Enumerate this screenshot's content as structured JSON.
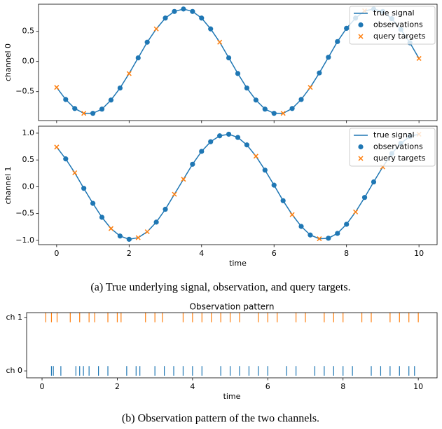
{
  "chart_data": [
    {
      "type": "line",
      "ylabel": "channel 0",
      "xlim": [
        -0.5,
        10.5
      ],
      "ylim": [
        -0.98,
        0.95
      ],
      "xticks": [
        0,
        2,
        4,
        6,
        8,
        10
      ],
      "xticklabels": false,
      "yticks": [
        {
          "value": -0.5,
          "label": "−0.5"
        },
        {
          "value": 0,
          "label": "0.0"
        },
        {
          "value": 0.5,
          "label": "0.5"
        }
      ],
      "legend": "upper right",
      "series": [
        {
          "name": "true signal",
          "color": "#1f77b4",
          "marker": null,
          "x": [
            0,
            0.25,
            0.5,
            0.75,
            1,
            1.25,
            1.5,
            1.75,
            2,
            2.25,
            2.5,
            2.75,
            3,
            3.25,
            3.5,
            3.75,
            4,
            4.25,
            4.5,
            4.75,
            5,
            5.25,
            5.5,
            5.75,
            6,
            6.25,
            6.5,
            6.75,
            7,
            7.25,
            7.5,
            7.75,
            8,
            8.25,
            8.5,
            8.75,
            9,
            9.25,
            9.5,
            9.75,
            10
          ],
          "values": [
            -0.43,
            -0.63,
            -0.78,
            -0.86,
            -0.86,
            -0.79,
            -0.64,
            -0.44,
            -0.2,
            0.06,
            0.32,
            0.54,
            0.72,
            0.83,
            0.87,
            0.83,
            0.72,
            0.54,
            0.32,
            0.06,
            -0.2,
            -0.44,
            -0.64,
            -0.79,
            -0.86,
            -0.86,
            -0.78,
            -0.63,
            -0.43,
            -0.19,
            0.07,
            0.33,
            0.55,
            0.72,
            0.84,
            0.87,
            0.83,
            0.71,
            0.53,
            0.31,
            0.05
          ]
        },
        {
          "name": "observations",
          "color": "#1f77b4",
          "marker": "o",
          "x": [
            0.25,
            0.5,
            1,
            1.25,
            1.5,
            1.75,
            2.25,
            2.5,
            3,
            3.25,
            3.5,
            3.75,
            4,
            4.25,
            4.75,
            5,
            5.25,
            5.5,
            5.75,
            6,
            6.5,
            6.75,
            7.25,
            7.5,
            7.75,
            8,
            8.25,
            8.75,
            9,
            9.25,
            9.5,
            9.75
          ],
          "values": [
            -0.63,
            -0.78,
            -0.86,
            -0.79,
            -0.64,
            -0.44,
            0.06,
            0.32,
            0.72,
            0.83,
            0.87,
            0.83,
            0.72,
            0.54,
            0.06,
            -0.2,
            -0.44,
            -0.64,
            -0.79,
            -0.86,
            -0.78,
            -0.63,
            -0.19,
            0.07,
            0.33,
            0.55,
            0.72,
            0.87,
            0.83,
            0.71,
            0.53,
            0.31
          ]
        },
        {
          "name": "query targets",
          "color": "#ff7f0e",
          "marker": "x",
          "x": [
            0,
            0.75,
            2,
            2.75,
            4.5,
            6.25,
            7,
            8.5,
            10
          ],
          "values": [
            -0.43,
            -0.86,
            -0.2,
            0.54,
            0.32,
            -0.86,
            -0.43,
            0.84,
            0.05
          ]
        }
      ]
    },
    {
      "type": "line",
      "ylabel": "channel 1",
      "xlabel": "time",
      "xlim": [
        -0.5,
        10.5
      ],
      "ylim": [
        -1.08,
        1.13
      ],
      "xticks": [
        0,
        2,
        4,
        6,
        8,
        10
      ],
      "yticks": [
        {
          "value": -1,
          "label": "−1.0"
        },
        {
          "value": -0.5,
          "label": "−0.5"
        },
        {
          "value": 0,
          "label": "0.0"
        },
        {
          "value": 0.5,
          "label": "0.5"
        },
        {
          "value": 1,
          "label": "1.0"
        }
      ],
      "legend": "upper right",
      "series": [
        {
          "name": "true signal",
          "color": "#1f77b4",
          "marker": null,
          "x": [
            0,
            0.25,
            0.5,
            0.75,
            1,
            1.25,
            1.5,
            1.75,
            2,
            2.25,
            2.5,
            2.75,
            3,
            3.25,
            3.5,
            3.75,
            4,
            4.25,
            4.5,
            4.75,
            5,
            5.25,
            5.5,
            5.75,
            6,
            6.25,
            6.5,
            6.75,
            7,
            7.25,
            7.5,
            7.75,
            8,
            8.25,
            8.5,
            8.75,
            9,
            9.25,
            9.5,
            9.75,
            10
          ],
          "values": [
            0.74,
            0.52,
            0.26,
            -0.03,
            -0.31,
            -0.57,
            -0.78,
            -0.92,
            -0.98,
            -0.95,
            -0.84,
            -0.66,
            -0.42,
            -0.14,
            0.14,
            0.42,
            0.66,
            0.84,
            0.95,
            0.98,
            0.92,
            0.78,
            0.57,
            0.31,
            0.03,
            -0.26,
            -0.52,
            -0.74,
            -0.9,
            -0.97,
            -0.96,
            -0.87,
            -0.7,
            -0.47,
            -0.2,
            0.09,
            0.37,
            0.62,
            0.81,
            0.94,
            0.98
          ]
        },
        {
          "name": "observations",
          "color": "#1f77b4",
          "marker": "o",
          "x": [
            0.25,
            0.75,
            1,
            1.25,
            1.75,
            2,
            2.75,
            3,
            3.75,
            4,
            4.25,
            4.5,
            4.75,
            5,
            5.25,
            5.75,
            6,
            6.25,
            6.75,
            7,
            7.5,
            7.75,
            8,
            8.5,
            8.75,
            9.25,
            9.5,
            9.75
          ],
          "values": [
            0.52,
            -0.03,
            -0.31,
            -0.57,
            -0.92,
            -0.98,
            -0.66,
            -0.42,
            0.42,
            0.66,
            0.84,
            0.95,
            0.98,
            0.92,
            0.78,
            0.31,
            0.03,
            -0.26,
            -0.74,
            -0.9,
            -0.96,
            -0.87,
            -0.7,
            -0.2,
            0.09,
            0.62,
            0.81,
            0.94
          ]
        },
        {
          "name": "query targets",
          "color": "#ff7f0e",
          "marker": "x",
          "x": [
            0,
            0.5,
            1.5,
            2.25,
            2.5,
            3.25,
            3.5,
            5.5,
            6.5,
            7.25,
            8.25,
            9,
            10
          ],
          "values": [
            0.74,
            0.26,
            -0.78,
            -0.95,
            -0.84,
            -0.14,
            0.14,
            0.57,
            -0.52,
            -0.97,
            -0.47,
            0.37,
            0.98
          ]
        }
      ]
    },
    {
      "type": "event",
      "title": "Observation pattern",
      "xlabel": "time",
      "xlim": [
        -0.41,
        10.5
      ],
      "ylim": [
        -0.13,
        1.09
      ],
      "xticks": [
        0,
        2,
        4,
        6,
        8,
        10
      ],
      "yticks": [
        {
          "value": 0,
          "label": "ch 0"
        },
        {
          "value": 1,
          "label": "ch 1"
        }
      ],
      "series": [
        {
          "color": "#1f77b4",
          "x": [
            0.25,
            0.3,
            0.5,
            0.9,
            1,
            1.1,
            1.25,
            1.5,
            1.75,
            2.25,
            2.5,
            2.6,
            3,
            3.25,
            3.5,
            3.75,
            4,
            4.25,
            4.75,
            5,
            5.25,
            5.5,
            5.75,
            6,
            6.5,
            6.75,
            7.25,
            7.5,
            7.75,
            8,
            8.25,
            8.75,
            9,
            9.25,
            9.5,
            9.75,
            9.9
          ]
        },
        {
          "color": "#ff7f0e",
          "x": [
            0.1,
            0.25,
            0.4,
            0.75,
            1,
            1.25,
            1.4,
            1.75,
            2,
            2.1,
            2.75,
            3,
            3.2,
            3.75,
            4,
            4.25,
            4.5,
            4.75,
            5,
            5.25,
            5.75,
            6,
            6.25,
            6.75,
            7,
            7.5,
            7.75,
            8,
            8.5,
            8.75,
            9.25,
            9.5,
            9.75,
            10
          ]
        }
      ]
    }
  ],
  "captions": [
    "(a) True underlying signal, observation, and query targets.",
    "(b) Observation pattern of the two channels."
  ]
}
